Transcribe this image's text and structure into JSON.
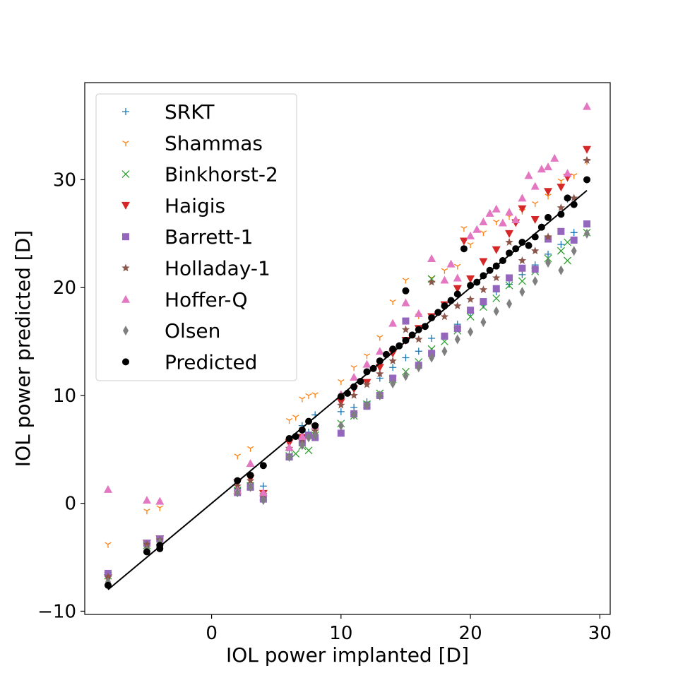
{
  "chart_data": {
    "type": "scatter",
    "title": "",
    "xlabel": "IOL power implanted [D]",
    "ylabel": "IOL power predicted [D]",
    "xlim": [
      -9.8,
      30.8
    ],
    "ylim": [
      -10.3,
      39.0
    ],
    "xticks": [
      0,
      10,
      20,
      30
    ],
    "yticks": [
      -10,
      0,
      10,
      20,
      30
    ],
    "xtick_labels": [
      "0",
      "10",
      "20",
      "30"
    ],
    "ytick_labels": [
      "−10",
      "0",
      "10",
      "20",
      "30"
    ],
    "grid": false,
    "legend_position": "upper-left",
    "reference_line": {
      "x": [
        -8,
        29
      ],
      "y": [
        -8,
        29
      ],
      "color": "#000000"
    },
    "series": [
      {
        "name": "SRKT",
        "marker": "plus",
        "color": "#1f77b4",
        "points": [
          [
            -8,
            -6.5
          ],
          [
            -5,
            -3.8
          ],
          [
            -4,
            -3.4
          ],
          [
            2,
            1.4
          ],
          [
            3,
            1.9
          ],
          [
            4,
            1.6
          ],
          [
            6,
            4.9
          ],
          [
            7,
            7.2
          ],
          [
            7.5,
            6.6
          ],
          [
            8,
            8.2
          ],
          [
            10,
            8.5
          ],
          [
            11,
            8.9
          ],
          [
            12,
            9.4
          ],
          [
            13,
            11.6
          ],
          [
            14,
            12.6
          ],
          [
            15,
            13.5
          ],
          [
            16,
            14.1
          ],
          [
            17,
            15.3
          ],
          [
            18,
            15.5
          ],
          [
            19,
            16.6
          ],
          [
            20,
            17.7
          ],
          [
            21,
            18.4
          ],
          [
            22,
            19.6
          ],
          [
            23,
            20.3
          ],
          [
            24,
            21.2
          ],
          [
            25,
            22.1
          ],
          [
            26,
            23.1
          ],
          [
            27,
            24.0
          ],
          [
            27.5,
            28.2
          ],
          [
            28,
            25.1
          ],
          [
            29,
            31.8
          ]
        ]
      },
      {
        "name": "Shammas",
        "marker": "tri_down",
        "color": "#ff7f0e",
        "points": [
          [
            -8,
            -3.8
          ],
          [
            -5,
            -0.7
          ],
          [
            -4,
            -0.4
          ],
          [
            2,
            4.4
          ],
          [
            3,
            5.1
          ],
          [
            6,
            7.7
          ],
          [
            6.5,
            8.0
          ],
          [
            7,
            9.7
          ],
          [
            7.5,
            10.0
          ],
          [
            8,
            10.1
          ],
          [
            10,
            11.3
          ],
          [
            11,
            12.6
          ],
          [
            12,
            13.7
          ],
          [
            13,
            15.4
          ],
          [
            14,
            18.7
          ],
          [
            15,
            20.7
          ],
          [
            16,
            17.4
          ],
          [
            17,
            20.9
          ],
          [
            18,
            21.6
          ],
          [
            19,
            22.0
          ],
          [
            19.5,
            25.5
          ],
          [
            20,
            24.0
          ],
          [
            21,
            25.1
          ],
          [
            22,
            26.1
          ],
          [
            23,
            26.6
          ],
          [
            24,
            27.1
          ],
          [
            25,
            27.8
          ],
          [
            26,
            28.5
          ],
          [
            27,
            29.9
          ],
          [
            28,
            30.4
          ],
          [
            29,
            31.7
          ]
        ]
      },
      {
        "name": "Binkhorst-2",
        "marker": "x",
        "color": "#2ca02c",
        "points": [
          [
            -8,
            -6.7
          ],
          [
            -5,
            -3.9
          ],
          [
            -4,
            -3.5
          ],
          [
            2,
            1.2
          ],
          [
            3,
            1.6
          ],
          [
            4,
            0.6
          ],
          [
            6,
            4.4
          ],
          [
            6.5,
            4.6
          ],
          [
            7,
            5.3
          ],
          [
            7.5,
            4.9
          ],
          [
            8,
            6.3
          ],
          [
            10,
            7.4
          ],
          [
            11,
            8.1
          ],
          [
            12,
            9.2
          ],
          [
            13,
            10.2
          ],
          [
            14,
            11.5
          ],
          [
            15,
            12.2
          ],
          [
            16,
            13.1
          ],
          [
            17,
            14.3
          ],
          [
            17,
            20.8
          ],
          [
            18,
            15.0
          ],
          [
            19,
            16.0
          ],
          [
            20,
            17.3
          ],
          [
            21,
            18.2
          ],
          [
            22,
            19.0
          ],
          [
            23,
            20.2
          ],
          [
            24,
            20.6
          ],
          [
            25,
            21.5
          ],
          [
            26,
            22.7
          ],
          [
            27,
            23.4
          ],
          [
            27.5,
            24.2
          ],
          [
            27.5,
            22.5
          ],
          [
            29,
            25.1
          ]
        ]
      },
      {
        "name": "Haigis",
        "marker": "triangle_down",
        "color": "#d62728",
        "points": [
          [
            -8,
            -6.9
          ],
          [
            -5,
            -3.7
          ],
          [
            -4,
            -3.3
          ],
          [
            2,
            1.9
          ],
          [
            3,
            2.3
          ],
          [
            4,
            0.9
          ],
          [
            6,
            5.6
          ],
          [
            7,
            6.1
          ],
          [
            8,
            7.0
          ],
          [
            10,
            9.4
          ],
          [
            11,
            10.6
          ],
          [
            12,
            11.2
          ],
          [
            13,
            12.6
          ],
          [
            14,
            13.9
          ],
          [
            15,
            15.1
          ],
          [
            16,
            16.2
          ],
          [
            17,
            17.3
          ],
          [
            18,
            18.4
          ],
          [
            19,
            19.9
          ],
          [
            19.5,
            24.3
          ],
          [
            20,
            20.8
          ],
          [
            21,
            22.4
          ],
          [
            22,
            23.5
          ],
          [
            23,
            25.0
          ],
          [
            23.5,
            26.0
          ],
          [
            24,
            27.3
          ],
          [
            25,
            26.3
          ],
          [
            26,
            28.9
          ],
          [
            27,
            29.3
          ],
          [
            27.5,
            30.2
          ],
          [
            29,
            32.8
          ]
        ]
      },
      {
        "name": "Barrett-1",
        "marker": "square",
        "color": "#9467bd",
        "points": [
          [
            -8,
            -6.5
          ],
          [
            -5,
            -3.7
          ],
          [
            -4,
            -3.3
          ],
          [
            2,
            1.0
          ],
          [
            3,
            1.5
          ],
          [
            4,
            0.4
          ],
          [
            6,
            4.3
          ],
          [
            7,
            5.6
          ],
          [
            7.5,
            6.3
          ],
          [
            8,
            6.1
          ],
          [
            10,
            6.5
          ],
          [
            11,
            8.3
          ],
          [
            12,
            9.0
          ],
          [
            13,
            10.0
          ],
          [
            14,
            11.6
          ],
          [
            15,
            16.9
          ],
          [
            16,
            12.8
          ],
          [
            17,
            13.9
          ],
          [
            18,
            15.5
          ],
          [
            19,
            16.2
          ],
          [
            20,
            17.9
          ],
          [
            21,
            18.7
          ],
          [
            22,
            19.9
          ],
          [
            23,
            20.9
          ],
          [
            24,
            21.8
          ],
          [
            25,
            21.7
          ],
          [
            26,
            24.5
          ],
          [
            27,
            25.2
          ],
          [
            28,
            24.4
          ],
          [
            29,
            25.9
          ]
        ]
      },
      {
        "name": "Holladay-1",
        "marker": "star",
        "color": "#8c564b",
        "points": [
          [
            -8,
            -6.8
          ],
          [
            -5,
            -3.8
          ],
          [
            -4,
            -3.4
          ],
          [
            2,
            1.6
          ],
          [
            3,
            2.1
          ],
          [
            4,
            0.8
          ],
          [
            6,
            5.1
          ],
          [
            7,
            5.9
          ],
          [
            8,
            6.7
          ],
          [
            10,
            9.1
          ],
          [
            11,
            10.0
          ],
          [
            12,
            11.0
          ],
          [
            13,
            12.0
          ],
          [
            14,
            13.2
          ],
          [
            15,
            16.1
          ],
          [
            16,
            15.2
          ],
          [
            17,
            20.5
          ],
          [
            18,
            17.3
          ],
          [
            19,
            18.3
          ],
          [
            20,
            18.9
          ],
          [
            21,
            19.8
          ],
          [
            22,
            20.9
          ],
          [
            23,
            24.2
          ],
          [
            24,
            22.5
          ],
          [
            25,
            23.4
          ],
          [
            26,
            24.7
          ],
          [
            27,
            27.4
          ],
          [
            28,
            28.3
          ],
          [
            29,
            31.8
          ]
        ]
      },
      {
        "name": "Hoffer-Q",
        "marker": "triangle_up",
        "color": "#e377c2",
        "points": [
          [
            -8,
            1.3
          ],
          [
            -5,
            0.3
          ],
          [
            -4,
            0.2
          ],
          [
            2,
            1.2
          ],
          [
            3,
            3.7
          ],
          [
            4,
            1.0
          ],
          [
            6,
            5.2
          ],
          [
            7,
            6.2
          ],
          [
            8,
            7.2
          ],
          [
            10,
            10.1
          ],
          [
            11,
            11.7
          ],
          [
            12,
            12.9
          ],
          [
            13,
            14.1
          ],
          [
            14,
            16.7
          ],
          [
            15,
            18.6
          ],
          [
            16,
            17.6
          ],
          [
            17,
            22.7
          ],
          [
            18,
            20.7
          ],
          [
            18.5,
            22.2
          ],
          [
            19,
            20.9
          ],
          [
            20,
            24.8
          ],
          [
            20.5,
            25.4
          ],
          [
            21,
            26.1
          ],
          [
            21.5,
            26.9
          ],
          [
            22,
            27.3
          ],
          [
            22.5,
            26.0
          ],
          [
            23,
            27.0
          ],
          [
            23.5,
            26.3
          ],
          [
            24,
            28.3
          ],
          [
            24.5,
            30.4
          ],
          [
            25,
            29.4
          ],
          [
            25.5,
            31.0
          ],
          [
            26,
            31.2
          ],
          [
            26.5,
            32.0
          ],
          [
            27.5,
            30.6
          ],
          [
            29,
            36.8
          ]
        ]
      },
      {
        "name": "Olsen",
        "marker": "thin_diamond",
        "color": "#7f7f7f",
        "points": [
          [
            -8,
            -7.3
          ],
          [
            -5,
            -4.3
          ],
          [
            -4,
            -3.6
          ],
          [
            2,
            1.0
          ],
          [
            3,
            1.5
          ],
          [
            4,
            0.3
          ],
          [
            6,
            4.3
          ],
          [
            7,
            5.4
          ],
          [
            7.5,
            6.1
          ],
          [
            8,
            6.3
          ],
          [
            10,
            7.2
          ],
          [
            11,
            8.2
          ],
          [
            12,
            9.1
          ],
          [
            13,
            10.0
          ],
          [
            14,
            11.1
          ],
          [
            15,
            11.8
          ],
          [
            16,
            12.6
          ],
          [
            17,
            13.5
          ],
          [
            18,
            14.1
          ],
          [
            19,
            15.2
          ],
          [
            20,
            15.9
          ],
          [
            21,
            16.8
          ],
          [
            22,
            17.8
          ],
          [
            23,
            18.5
          ],
          [
            24,
            19.6
          ],
          [
            25,
            20.6
          ],
          [
            26,
            22.3
          ],
          [
            27,
            21.6
          ],
          [
            28,
            23.4
          ],
          [
            29,
            25.0
          ]
        ]
      },
      {
        "name": "Predicted",
        "marker": "circle",
        "color": "#000000",
        "points": [
          [
            -8,
            -7.6
          ],
          [
            -5,
            -4.5
          ],
          [
            -4,
            -4.2
          ],
          [
            -4,
            -3.9
          ],
          [
            2,
            2.1
          ],
          [
            3,
            2.6
          ],
          [
            4,
            3.5
          ],
          [
            6,
            6.0
          ],
          [
            6.5,
            6.2
          ],
          [
            7,
            6.8
          ],
          [
            7.5,
            7.6
          ],
          [
            8,
            7.2
          ],
          [
            10,
            9.9
          ],
          [
            10.5,
            10.2
          ],
          [
            11,
            10.8
          ],
          [
            11.5,
            11.3
          ],
          [
            12,
            12.2
          ],
          [
            12.5,
            12.5
          ],
          [
            13,
            13.2
          ],
          [
            13.5,
            13.8
          ],
          [
            14,
            14.3
          ],
          [
            14.5,
            14.6
          ],
          [
            15,
            15.1
          ],
          [
            15,
            19.7
          ],
          [
            15.5,
            15.6
          ],
          [
            16,
            16.1
          ],
          [
            16.5,
            16.4
          ],
          [
            17,
            17.2
          ],
          [
            17.5,
            17.7
          ],
          [
            18,
            18.3
          ],
          [
            18.5,
            18.8
          ],
          [
            19,
            19.4
          ],
          [
            19.5,
            23.6
          ],
          [
            20,
            20.2
          ],
          [
            20.5,
            20.5
          ],
          [
            21,
            21.1
          ],
          [
            21.5,
            21.6
          ],
          [
            22,
            22.0
          ],
          [
            22.5,
            22.5
          ],
          [
            23,
            23.2
          ],
          [
            23.5,
            23.6
          ],
          [
            24,
            24.2
          ],
          [
            24.5,
            23.9
          ],
          [
            25,
            24.7
          ],
          [
            25.5,
            25.6
          ],
          [
            26,
            26.5
          ],
          [
            27,
            26.8
          ],
          [
            27.5,
            28.3
          ],
          [
            28,
            27.7
          ],
          [
            29,
            30.0
          ]
        ]
      }
    ]
  }
}
